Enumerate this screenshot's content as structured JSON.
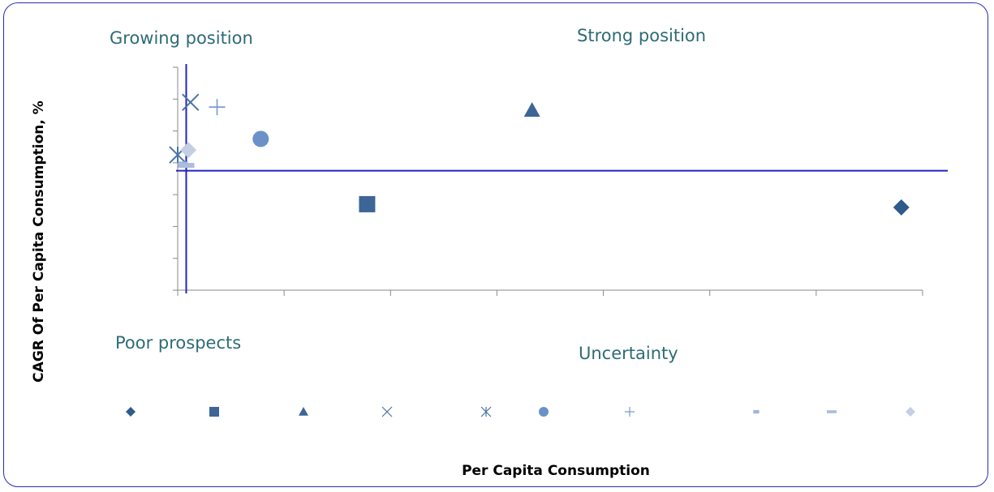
{
  "chart_data": {
    "type": "scatter",
    "xlabel": "Per Capita Consumption",
    "ylabel": "CAGR Of Per Capita Consumption, %",
    "xlim": [
      0,
      7
    ],
    "ylim": [
      0,
      7
    ],
    "grid": false,
    "legend_placement": "bottom",
    "quadrant_labels": {
      "top_left": "Growing position",
      "top_right": "Strong position",
      "bottom_left": "Poor prospects",
      "bottom_right": "Uncertainty"
    },
    "reference_lines": {
      "x": 0.08,
      "y": 3.75
    },
    "series": [
      {
        "marker": "diamond",
        "color": "#2f5b8a",
        "x": 6.8,
        "y": 2.6
      },
      {
        "marker": "square",
        "color": "#3d6597",
        "x": 1.78,
        "y": 2.7
      },
      {
        "marker": "triangle",
        "color": "#3d6597",
        "x": 3.33,
        "y": 5.65
      },
      {
        "marker": "x",
        "color": "#4b73a6",
        "x": 0.12,
        "y": 5.9
      },
      {
        "marker": "star",
        "color": "#4b73a6",
        "x": 0.0,
        "y": 4.25
      },
      {
        "marker": "circle",
        "color": "#6b91c8",
        "x": 0.78,
        "y": 4.75
      },
      {
        "marker": "plus",
        "color": "#7b9ccc",
        "x": 0.37,
        "y": 5.75
      },
      {
        "marker": "short-dash",
        "color": "#9fb4d6",
        "x": 0.05,
        "y": 3.95
      },
      {
        "marker": "long-dash",
        "color": "#a9bedc",
        "x": 0.08,
        "y": 3.92
      },
      {
        "marker": "diamond",
        "color": "#c3cfe3",
        "x": 0.1,
        "y": 4.4
      }
    ]
  }
}
